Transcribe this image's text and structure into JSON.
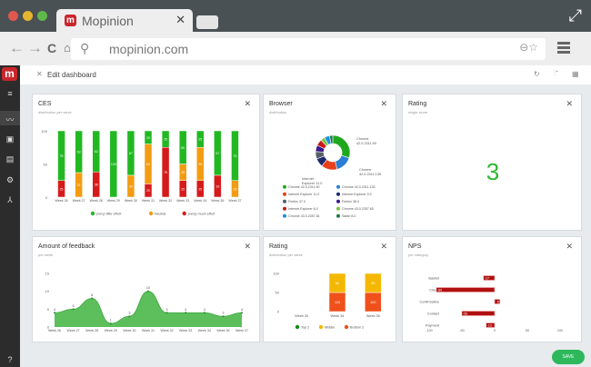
{
  "browser": {
    "tab_title": "Mopinion",
    "url": "mopinion.com"
  },
  "app": {
    "edit_label": "Edit dashboard",
    "save_label": "SAVE",
    "colors": {
      "brand": "#c9262b",
      "green": "#2eb85c"
    }
  },
  "widgets": {
    "ces": {
      "title": "CES",
      "subtitle": "distribution per week"
    },
    "browser": {
      "title": "Browser",
      "subtitle": "distribution"
    },
    "rating_score": {
      "title": "Rating",
      "subtitle": "single score",
      "value": "3"
    },
    "feedback": {
      "title": "Amount of feedback",
      "subtitle": "per week"
    },
    "rating_dist": {
      "title": "Rating",
      "subtitle": "distribution per week"
    },
    "nps": {
      "title": "NPS",
      "subtitle": "per category"
    }
  },
  "chart_data": [
    {
      "id": "ces",
      "type": "bar",
      "stacked": true,
      "categories": [
        "Week 26",
        "Week 27",
        "Week 28",
        "Week 29",
        "Week 30",
        "Week 31",
        "Week 32",
        "Week 33",
        "Week 34",
        "Week 36",
        "Week 37"
      ],
      "series": [
        {
          "name": "(very) little effort",
          "color": "#22b822",
          "values": [
            75,
            63,
            62,
            100,
            67,
            20,
            25,
            50,
            25,
            67,
            75
          ]
        },
        {
          "name": "Neutral",
          "color": "#f39c12",
          "values": [
            0,
            37,
            0,
            0,
            33,
            60,
            0,
            25,
            50,
            0,
            25
          ]
        },
        {
          "name": "(very) much effort",
          "color": "#d61a1a",
          "values": [
            25,
            0,
            38,
            0,
            0,
            20,
            75,
            25,
            25,
            33,
            0
          ]
        }
      ],
      "yticks": [
        0,
        50,
        100
      ],
      "ylim": [
        0,
        100
      ],
      "legend": "bottom"
    },
    {
      "id": "browser",
      "type": "pie",
      "donut": true,
      "labels": [
        "Chrome 42.0.2311.90",
        "Chrome 42.0.2311.135",
        "Internet Explorer 11.0",
        "Internet Explorer 9.0",
        "Firefox 37.0",
        "Firefox 38.0",
        "Internet Explorer 8.0",
        "Chrome 43.0.2357.65",
        "Chrome 43.0.2357.81",
        "Safari 8.0"
      ],
      "values": [
        30,
        16,
        15,
        8,
        7,
        6,
        6,
        4,
        5,
        3
      ],
      "colors": [
        "#1fa81f",
        "#2a7fd4",
        "#e8401a",
        "#1a2a6c",
        "#555f66",
        "#3a1a8c",
        "#c91a1a",
        "#7cc242",
        "#1e90e0",
        "#1a7a4a"
      ],
      "callouts": [
        "Chrome 42.0.2311.90",
        "Chrome 42.0.2311.135",
        "Internet Explorer 11.0"
      ],
      "legend": "bottom"
    },
    {
      "id": "feedback",
      "type": "area",
      "categories": [
        "Week 26",
        "Week 27",
        "Week 28",
        "Week 29",
        "Week 30",
        "Week 31",
        "Week 32",
        "Week 33",
        "Week 34",
        "Week 36",
        "Week 37"
      ],
      "values": [
        4,
        5,
        8,
        1,
        3,
        10,
        4,
        4,
        4,
        3,
        4
      ],
      "yticks": [
        0,
        5,
        10,
        15
      ],
      "ylim": [
        0,
        15
      ],
      "color": "#5cbf5c"
    },
    {
      "id": "rating_dist",
      "type": "bar",
      "stacked": true,
      "categories": [
        "Week 30",
        "Week 34",
        "Week 36"
      ],
      "series": [
        {
          "name": "Top 2",
          "color": "#138a13",
          "values": [
            0,
            0,
            0
          ]
        },
        {
          "name": "Middle",
          "color": "#f5b800",
          "values": [
            0,
            50,
            50
          ],
          "labels": [
            "",
            "50",
            "50"
          ]
        },
        {
          "name": "Bottom 2",
          "color": "#f0501a",
          "values": [
            0,
            50,
            50
          ],
          "labels": [
            "",
            "100",
            "100"
          ]
        }
      ],
      "yticks": [
        0,
        50,
        100
      ],
      "ylim": [
        0,
        100
      ],
      "legend": "bottom"
    },
    {
      "id": "nps",
      "type": "bar",
      "orientation": "horizontal",
      "categories": [
        "Basket",
        "Check",
        "Confirmation",
        "Contact",
        "Payment"
      ],
      "values": [
        -17,
        -89,
        8,
        -50,
        -13
      ],
      "xticks": [
        -100,
        -50,
        0,
        50,
        100
      ],
      "xlim": [
        -100,
        100
      ],
      "color": "#b01010"
    }
  ]
}
